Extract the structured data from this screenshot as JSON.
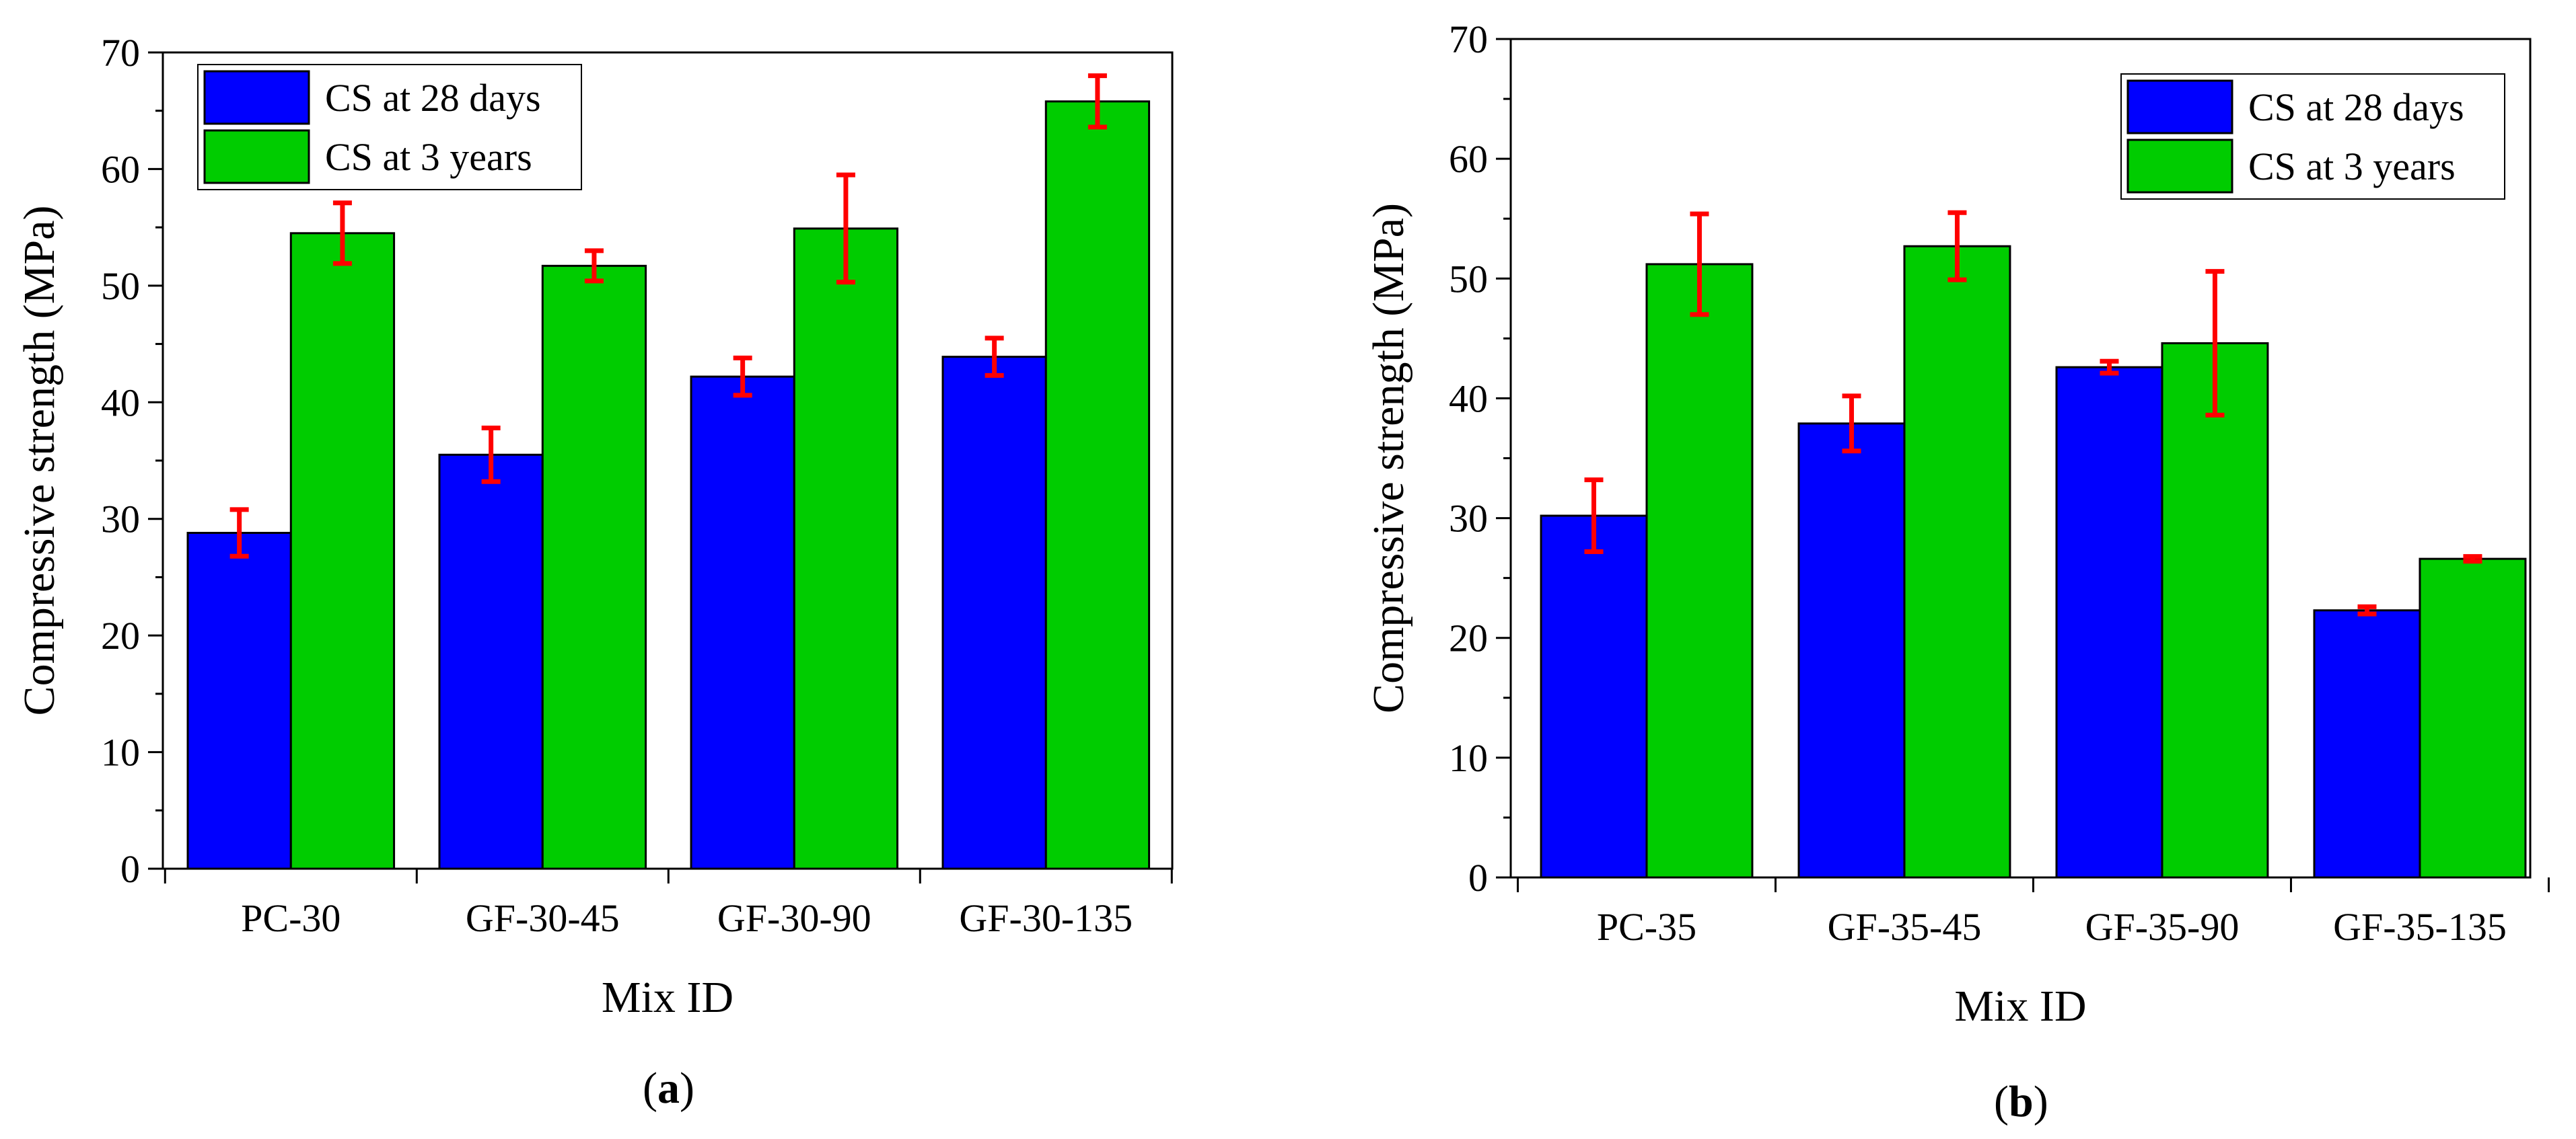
{
  "chart_data": [
    {
      "type": "bar",
      "panel_label": "a",
      "title": "",
      "xlabel": "Mix ID",
      "ylabel": "Compressive  strength (MPa)",
      "ylim": [
        0,
        70
      ],
      "yticks": [
        0,
        10,
        20,
        30,
        40,
        50,
        60,
        70
      ],
      "grid": false,
      "legend_position": "top-left",
      "categories": [
        "PC-30",
        "GF-30-45",
        "GF-30-90",
        "GF-30-135"
      ],
      "series": [
        {
          "name": "CS at 28 days",
          "color": "#0000ff",
          "values": [
            28.8,
            35.5,
            42.2,
            43.9
          ],
          "errors": [
            2.0,
            2.3,
            1.6,
            1.6
          ]
        },
        {
          "name": "CS at 3 years",
          "color": "#00cc00",
          "values": [
            54.5,
            51.7,
            54.9,
            65.8
          ],
          "errors": [
            2.6,
            1.3,
            4.6,
            2.2
          ]
        }
      ],
      "error_bar_color": "#ff0000"
    },
    {
      "type": "bar",
      "panel_label": "b",
      "title": "",
      "xlabel": "Mix ID",
      "ylabel": "Compressive  strength (MPa)",
      "ylim": [
        0,
        70
      ],
      "yticks": [
        0,
        10,
        20,
        30,
        40,
        50,
        60,
        70
      ],
      "grid": false,
      "legend_position": "top-right",
      "categories": [
        "PC-35",
        "GF-35-45",
        "GF-35-90",
        "GF-35-135"
      ],
      "series": [
        {
          "name": "CS at 28 days",
          "color": "#0000ff",
          "values": [
            30.2,
            37.9,
            42.6,
            22.3
          ],
          "errors": [
            3.0,
            2.3,
            0.5,
            0.3
          ]
        },
        {
          "name": "CS at 3 years",
          "color": "#00cc00",
          "values": [
            51.2,
            52.7,
            44.6,
            26.6
          ],
          "errors": [
            4.2,
            2.8,
            6.0,
            0.2
          ]
        }
      ],
      "error_bar_color": "#ff0000"
    }
  ]
}
